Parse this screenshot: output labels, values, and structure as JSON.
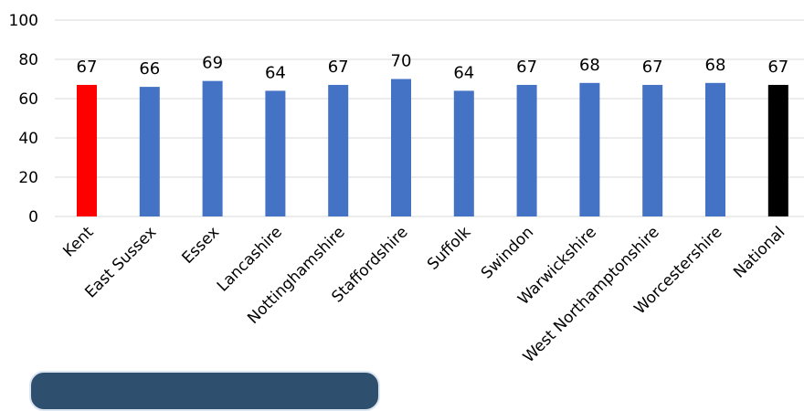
{
  "chart_data": {
    "type": "bar",
    "categories": [
      "Kent",
      "East Sussex",
      "Essex",
      "Lancashire",
      "Nottinghamshire",
      "Staffordshire",
      "Suffolk",
      "Swindon",
      "Warwickshire",
      "West Northamptonshire",
      "Worcestershire",
      "National"
    ],
    "values": [
      67,
      66,
      69,
      64,
      67,
      70,
      64,
      67,
      68,
      67,
      68,
      67
    ],
    "colors": [
      "#ff0000",
      "#4472c4",
      "#4472c4",
      "#4472c4",
      "#4472c4",
      "#4472c4",
      "#4472c4",
      "#4472c4",
      "#4472c4",
      "#4472c4",
      "#4472c4",
      "#000000"
    ],
    "ylim": [
      0,
      100
    ],
    "yticks": [
      0,
      20,
      40,
      60,
      80,
      100
    ],
    "grid": true,
    "legend": "none",
    "title": "",
    "xlabel": "",
    "ylabel": ""
  }
}
